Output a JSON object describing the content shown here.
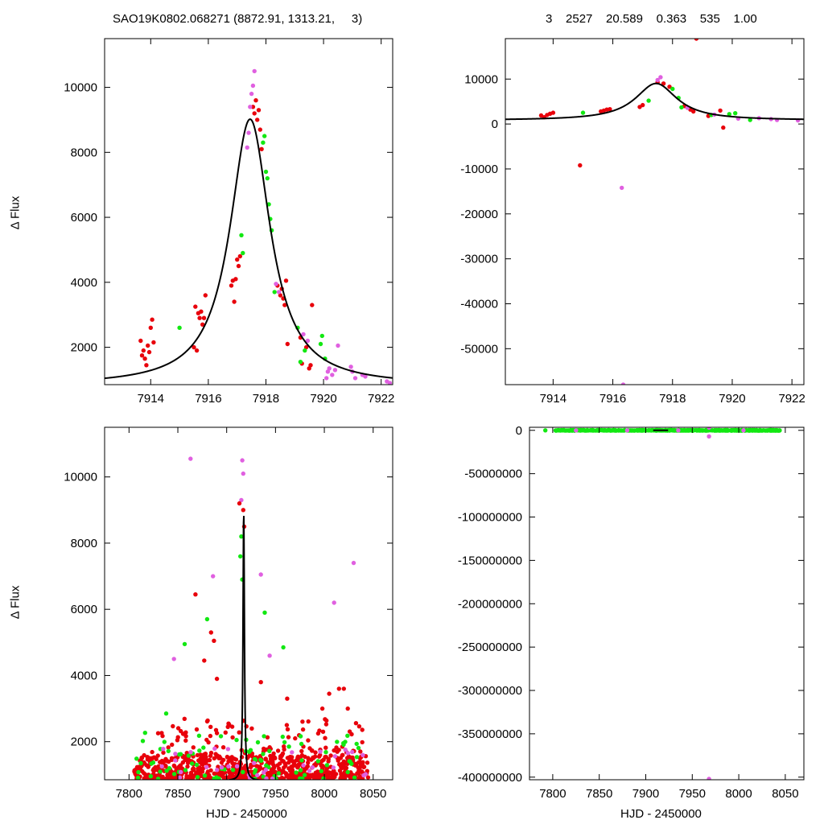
{
  "header": {
    "left_title": "SAO19K0802.068271 (8872.91, 1313.21,     3)",
    "right_title": "3    2527    20.589    0.363    535    1.00"
  },
  "colors": {
    "red": "#e8000b",
    "green": "#12e812",
    "violet": "#e060e0",
    "curve": "#000000"
  },
  "chart_data": [
    {
      "type": "scatter",
      "panel": "top-left",
      "xlabel": "",
      "ylabel": "Δ Flux",
      "xlim": [
        7912.4,
        7922.4
      ],
      "ylim": [
        850,
        11500
      ],
      "xticks": [
        7914,
        7916,
        7918,
        7920,
        7922
      ],
      "yticks": [
        2000,
        4000,
        6000,
        8000,
        10000
      ],
      "model": {
        "t0": 7917.45,
        "amp": 8200,
        "base": 820,
        "tau": 0.85
      },
      "series": [
        {
          "color": "red",
          "points": [
            [
              7913.65,
              2200
            ],
            [
              7913.7,
              1750
            ],
            [
              7913.75,
              1900
            ],
            [
              7913.8,
              1650
            ],
            [
              7913.85,
              1450
            ],
            [
              7913.9,
              2050
            ],
            [
              7913.95,
              1850
            ],
            [
              7914.0,
              2600
            ],
            [
              7914.05,
              2850
            ],
            [
              7914.1,
              2150
            ],
            [
              7915.5,
              2000
            ],
            [
              7915.55,
              3250
            ],
            [
              7915.6,
              1900
            ],
            [
              7915.65,
              3050
            ],
            [
              7915.7,
              2900
            ],
            [
              7915.75,
              3100
            ],
            [
              7915.8,
              2700
            ],
            [
              7915.85,
              2900
            ],
            [
              7915.9,
              3600
            ],
            [
              7916.8,
              3900
            ],
            [
              7916.85,
              4050
            ],
            [
              7916.9,
              3400
            ],
            [
              7916.95,
              4100
            ],
            [
              7917.0,
              4700
            ],
            [
              7917.05,
              4500
            ],
            [
              7917.1,
              4800
            ],
            [
              7917.55,
              9400
            ],
            [
              7917.6,
              9200
            ],
            [
              7917.65,
              9600
            ],
            [
              7917.7,
              9000
            ],
            [
              7917.75,
              9300
            ],
            [
              7917.8,
              8700
            ],
            [
              7917.85,
              8100
            ],
            [
              7918.4,
              3900
            ],
            [
              7918.5,
              3600
            ],
            [
              7918.55,
              3800
            ],
            [
              7918.6,
              3500
            ],
            [
              7918.65,
              3300
            ],
            [
              7918.7,
              4050
            ],
            [
              7918.75,
              2100
            ],
            [
              7919.2,
              2300
            ],
            [
              7919.25,
              1500
            ],
            [
              7919.4,
              2000
            ],
            [
              7919.5,
              1350
            ],
            [
              7919.55,
              1450
            ],
            [
              7919.6,
              3300
            ]
          ]
        },
        {
          "color": "green",
          "points": [
            [
              7915.0,
              2600
            ],
            [
              7917.15,
              5450
            ],
            [
              7917.2,
              4900
            ],
            [
              7917.9,
              8300
            ],
            [
              7917.95,
              8500
            ],
            [
              7918.0,
              7400
            ],
            [
              7918.05,
              7200
            ],
            [
              7918.1,
              6400
            ],
            [
              7918.15,
              5950
            ],
            [
              7918.2,
              5600
            ],
            [
              7918.3,
              3700
            ],
            [
              7919.1,
              2600
            ],
            [
              7919.2,
              1550
            ],
            [
              7919.35,
              1900
            ],
            [
              7919.9,
              2100
            ],
            [
              7919.95,
              2350
            ],
            [
              7920.05,
              1650
            ]
          ]
        },
        {
          "color": "violet",
          "points": [
            [
              7917.35,
              8150
            ],
            [
              7917.4,
              8600
            ],
            [
              7917.45,
              9400
            ],
            [
              7917.5,
              9800
            ],
            [
              7917.55,
              10050
            ],
            [
              7917.6,
              10500
            ],
            [
              7918.35,
              3950
            ],
            [
              7918.45,
              3700
            ],
            [
              7919.3,
              2400
            ],
            [
              7919.45,
              2200
            ],
            [
              7920.1,
              1050
            ],
            [
              7920.15,
              1250
            ],
            [
              7920.2,
              1350
            ],
            [
              7920.3,
              1150
            ],
            [
              7920.4,
              1300
            ],
            [
              7920.5,
              2050
            ],
            [
              7920.95,
              1400
            ],
            [
              7921.0,
              1250
            ],
            [
              7921.1,
              1050
            ],
            [
              7921.35,
              1150
            ],
            [
              7921.45,
              1100
            ],
            [
              7922.2,
              950
            ],
            [
              7922.3,
              900
            ]
          ]
        }
      ]
    },
    {
      "type": "scatter",
      "panel": "top-right",
      "xlabel": "",
      "ylabel": "",
      "xlim": [
        7912.4,
        7922.4
      ],
      "ylim": [
        -58000,
        19000
      ],
      "xticks": [
        7914,
        7916,
        7918,
        7920,
        7922
      ],
      "yticks": [
        -50000,
        -40000,
        -30000,
        -20000,
        -10000,
        0,
        10000
      ],
      "model": {
        "t0": 7917.45,
        "amp": 8200,
        "base": 820,
        "tau": 0.85
      },
      "series": [
        {
          "color": "red",
          "points": [
            [
              7913.6,
              1900
            ],
            [
              7913.7,
              1500
            ],
            [
              7913.8,
              2000
            ],
            [
              7913.9,
              2300
            ],
            [
              7914.0,
              2500
            ],
            [
              7914.9,
              -9200
            ],
            [
              7915.6,
              2800
            ],
            [
              7915.7,
              3000
            ],
            [
              7915.8,
              3200
            ],
            [
              7915.9,
              3300
            ],
            [
              7916.9,
              3800
            ],
            [
              7917.0,
              4200
            ],
            [
              7917.5,
              9300
            ],
            [
              7917.7,
              9000
            ],
            [
              7917.9,
              8300
            ],
            [
              7918.4,
              4000
            ],
            [
              7918.6,
              3200
            ],
            [
              7918.7,
              2800
            ],
            [
              7918.8,
              19000
            ],
            [
              7919.2,
              1800
            ],
            [
              7919.6,
              3000
            ],
            [
              7919.7,
              -800
            ]
          ]
        },
        {
          "color": "green",
          "points": [
            [
              7915.0,
              2500
            ],
            [
              7917.2,
              5200
            ],
            [
              7918.0,
              7800
            ],
            [
              7918.2,
              5800
            ],
            [
              7918.3,
              3700
            ],
            [
              7919.3,
              2000
            ],
            [
              7919.9,
              2200
            ],
            [
              7920.1,
              2400
            ],
            [
              7920.6,
              900
            ]
          ]
        },
        {
          "color": "violet",
          "points": [
            [
              7916.3,
              -14200
            ],
            [
              7916.35,
              -58000
            ],
            [
              7917.5,
              9800
            ],
            [
              7917.6,
              10400
            ],
            [
              7918.5,
              3600
            ],
            [
              7919.4,
              2100
            ],
            [
              7920.2,
              1200
            ],
            [
              7920.9,
              1300
            ],
            [
              7921.3,
              1100
            ],
            [
              7921.5,
              900
            ],
            [
              7922.2,
              800
            ]
          ]
        }
      ]
    },
    {
      "type": "scatter",
      "panel": "bottom-left",
      "xlabel": "HJD - 2450000",
      "ylabel": "Δ Flux",
      "xlim": [
        7775,
        8070
      ],
      "ylim": [
        850,
        11500
      ],
      "xticks": [
        7800,
        7850,
        7900,
        7950,
        8000,
        8050
      ],
      "yticks": [
        2000,
        4000,
        6000,
        8000,
        10000
      ],
      "model": {
        "t0": 7917.45,
        "amp": 8200,
        "base": 820,
        "tau": 0.85
      },
      "highlights": {
        "violet": [
          [
            7863,
            10550
          ],
          [
            7916,
            10500
          ],
          [
            7917,
            10100
          ],
          [
            7846,
            4500
          ],
          [
            7886,
            7000
          ],
          [
            7935,
            7050
          ],
          [
            7944,
            4600
          ],
          [
            8010,
            6200
          ],
          [
            8030,
            7400
          ],
          [
            7915,
            9300
          ]
        ],
        "green": [
          [
            7857,
            4950
          ],
          [
            7880,
            5700
          ],
          [
            7939,
            5900
          ],
          [
            7958,
            4850
          ],
          [
            7838,
            2850
          ],
          [
            7915,
            8200
          ],
          [
            7914,
            7600
          ],
          [
            7916,
            6900
          ]
        ],
        "red": [
          [
            7868,
            6450
          ],
          [
            7877,
            4450
          ],
          [
            7884,
            5300
          ],
          [
            7887,
            5050
          ],
          [
            7913,
            9200
          ],
          [
            7917,
            9000
          ],
          [
            7918,
            8500
          ],
          [
            8015,
            3600
          ],
          [
            8020,
            3600
          ],
          [
            8024,
            3000
          ],
          [
            7998,
            3000
          ],
          [
            8005,
            3450
          ],
          [
            7890,
            3900
          ],
          [
            7935,
            3800
          ],
          [
            7962,
            3300
          ]
        ]
      },
      "bands": [
        {
          "color": "red",
          "x_from": 7805,
          "x_to": 8045,
          "y_from": 880,
          "y_to": 1600,
          "count": 700
        },
        {
          "color": "red",
          "x_from": 7820,
          "x_to": 8040,
          "y_from": 1500,
          "y_to": 2700,
          "count": 130
        },
        {
          "color": "green",
          "x_from": 7805,
          "x_to": 8040,
          "y_from": 880,
          "y_to": 2300,
          "count": 90
        },
        {
          "color": "violet",
          "x_from": 7830,
          "x_to": 8045,
          "y_from": 880,
          "y_to": 2000,
          "count": 35
        }
      ]
    },
    {
      "type": "scatter",
      "panel": "bottom-right",
      "xlabel": "HJD - 2450000",
      "ylabel": "",
      "xlim": [
        7775,
        8070
      ],
      "ylim": [
        -403000000,
        3500000
      ],
      "xticks": [
        7800,
        7850,
        7900,
        7950,
        8000,
        8050
      ],
      "yticks": [
        -400000000,
        -350000000,
        -300000000,
        -250000000,
        -200000000,
        -150000000,
        -100000000,
        -50000000,
        0
      ],
      "highlights": {
        "violet": [
          [
            7968,
            3200000
          ],
          [
            7968,
            -7000000
          ],
          [
            7968,
            -402000000
          ],
          [
            7825,
            0
          ],
          [
            7880,
            0
          ],
          [
            7935,
            0
          ],
          [
            8005,
            0
          ]
        ],
        "green": [
          [
            7792,
            0
          ],
          [
            7806,
            0
          ],
          [
            7820,
            0
          ],
          [
            7905,
            0
          ],
          [
            7980,
            0
          ],
          [
            8044,
            0
          ]
        ]
      },
      "bands": [
        {
          "color": "green",
          "x_from": 7803,
          "x_to": 8045,
          "y_from": -300000,
          "y_to": 300000,
          "count": 400
        }
      ]
    }
  ]
}
